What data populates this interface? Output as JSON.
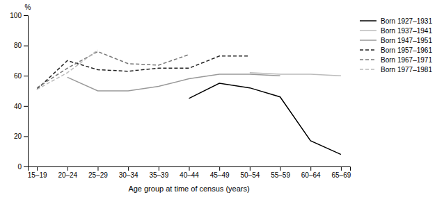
{
  "chart_data": {
    "type": "line",
    "xlabel": "Age group at time of census (years)",
    "ylabel": "%",
    "categories": [
      "15–19",
      "20–24",
      "25–29",
      "30–34",
      "35–39",
      "40–44",
      "45–49",
      "50–54",
      "55–59",
      "60–64",
      "65–69"
    ],
    "series": [
      {
        "name": "Born 1927–1931",
        "color": "#000000",
        "line_style": "solid",
        "values": [
          null,
          null,
          null,
          null,
          null,
          45,
          55,
          52,
          46,
          17,
          8
        ]
      },
      {
        "name": "Born 1937–1941",
        "color": "#bbbbbb",
        "line_style": "solid",
        "values": [
          null,
          null,
          null,
          null,
          null,
          null,
          null,
          62,
          61,
          61,
          60
        ]
      },
      {
        "name": "Born 1947–1951",
        "color": "#999999",
        "line_style": "solid",
        "values": [
          null,
          59,
          50,
          50,
          53,
          58,
          61,
          61,
          60,
          null,
          null
        ]
      },
      {
        "name": "Born 1957–1961",
        "color": "#222222",
        "line_style": "dashed",
        "values": [
          51,
          70,
          64,
          63,
          65,
          65,
          73,
          73,
          null,
          null,
          null
        ]
      },
      {
        "name": "Born 1967–1971",
        "color": "#777777",
        "line_style": "dashed",
        "values": [
          52,
          65,
          76,
          68,
          67,
          74,
          null,
          null,
          null,
          null,
          null
        ]
      },
      {
        "name": "Born 1977–1981",
        "color": "#bbbbbb",
        "line_style": "dashed",
        "values": [
          51,
          62,
          77,
          null,
          null,
          null,
          null,
          null,
          null,
          null,
          null
        ]
      }
    ],
    "ylim": [
      0,
      100
    ],
    "yticks": [
      0,
      20,
      40,
      60,
      80,
      100
    ],
    "grid": false,
    "legend": "upper right"
  }
}
